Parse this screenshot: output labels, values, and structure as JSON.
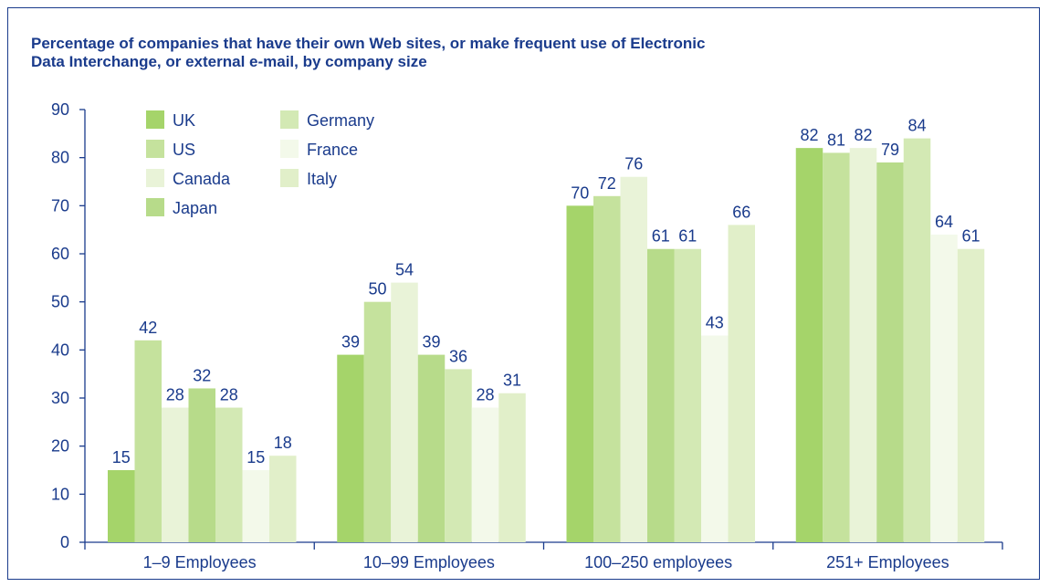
{
  "chart_data": {
    "type": "bar",
    "title": "Percentage of companies that have their own Web sites, or make frequent use of Electronic Data Interchange, or external e-mail, by company size",
    "title_lines": [
      "Percentage of companies that have their own Web sites, or make frequent use of Electronic",
      "Data Interchange, or external e-mail, by company size"
    ],
    "xlabel": "",
    "ylabel": "",
    "ylim": [
      0,
      90
    ],
    "yticks": [
      0,
      10,
      20,
      30,
      40,
      50,
      60,
      70,
      80,
      90
    ],
    "grid": false,
    "legend_position": "top-left",
    "categories": [
      "1–9 Employees",
      "10–99 Employees",
      "100–250 employees",
      "251+ Employees"
    ],
    "series": [
      {
        "name": "UK",
        "color": "#a5d46a",
        "values": [
          15,
          39,
          70,
          82
        ]
      },
      {
        "name": "US",
        "color": "#c5e29d",
        "values": [
          42,
          50,
          72,
          81
        ]
      },
      {
        "name": "Canada",
        "color": "#e9f3d8",
        "values": [
          28,
          54,
          76,
          82
        ]
      },
      {
        "name": "Japan",
        "color": "#b7db8a",
        "values": [
          32,
          39,
          61,
          79
        ]
      },
      {
        "name": "Germany",
        "color": "#d3e9b4",
        "values": [
          28,
          36,
          61,
          84
        ]
      },
      {
        "name": "France",
        "color": "#f3f9ea",
        "values": [
          15,
          28,
          43,
          64
        ]
      },
      {
        "name": "Italy",
        "color": "#e1efc9",
        "values": [
          18,
          31,
          66,
          61
        ]
      }
    ],
    "legend_columns": [
      [
        "UK",
        "US",
        "Canada",
        "Japan"
      ],
      [
        "Germany",
        "France",
        "Italy"
      ]
    ]
  },
  "colors": {
    "text": "#1a3b8c",
    "axis": "#1a3b8c",
    "frame": "#1a3b8c"
  }
}
